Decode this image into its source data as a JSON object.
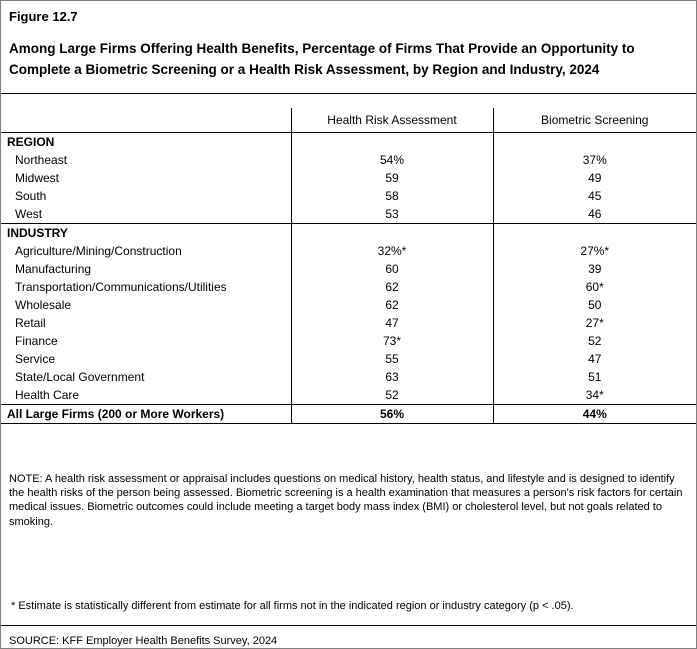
{
  "header": {
    "figure_label": "Figure 12.7",
    "title": "Among Large Firms Offering Health Benefits, Percentage of Firms That Provide an Opportunity to Complete a Biometric Screening or a Health Risk Assessment, by Region and Industry, 2024"
  },
  "chart_data": {
    "type": "table",
    "title": "Among Large Firms Offering Health Benefits, Percentage of Firms That Provide an Opportunity to Complete a Biometric Screening or a Health Risk Assessment, by Region and Industry, 2024",
    "columns": [
      "",
      "Health Risk Assessment",
      "Biometric Screening"
    ],
    "rows": [
      {
        "label": "REGION",
        "hra": "",
        "bs": "",
        "kind": "section"
      },
      {
        "label": "Northeast",
        "hra": "54%",
        "bs": "37%"
      },
      {
        "label": "Midwest",
        "hra": "59",
        "bs": "49"
      },
      {
        "label": "South",
        "hra": "58",
        "bs": "45"
      },
      {
        "label": "West",
        "hra": "53",
        "bs": "46"
      },
      {
        "label": "INDUSTRY",
        "hra": "",
        "bs": "",
        "kind": "section"
      },
      {
        "label": "Agriculture/Mining/Construction",
        "hra": "32%*",
        "bs": "27%*"
      },
      {
        "label": "Manufacturing",
        "hra": "60",
        "bs": "39"
      },
      {
        "label": "Transportation/Communications/Utilities",
        "hra": "62",
        "bs": "60*"
      },
      {
        "label": "Wholesale",
        "hra": "62",
        "bs": "50"
      },
      {
        "label": "Retail",
        "hra": "47",
        "bs": "27*"
      },
      {
        "label": "Finance",
        "hra": "73*",
        "bs": "52"
      },
      {
        "label": "Service",
        "hra": "55",
        "bs": "47"
      },
      {
        "label": "State/Local Government",
        "hra": "63",
        "bs": "51"
      },
      {
        "label": "Health Care",
        "hra": "52",
        "bs": "34*"
      },
      {
        "label": "All Large Firms (200 or More Workers)",
        "hra": "56%",
        "bs": "44%",
        "kind": "total"
      }
    ]
  },
  "notes": {
    "note": "NOTE: A health risk assessment or appraisal includes questions on medical history, health status, and lifestyle and is designed to identify the health risks of the person being assessed.  Biometric screening is a health examination that measures a person's risk factors for certain medical issues. Biometric outcomes could include meeting a target body mass index (BMI) or cholesterol level, but not goals related to smoking.",
    "significance": "* Estimate is statistically different from estimate for all firms not in the indicated region or industry category (p < .05).",
    "source": "SOURCE: KFF Employer Health Benefits Survey, 2024"
  }
}
